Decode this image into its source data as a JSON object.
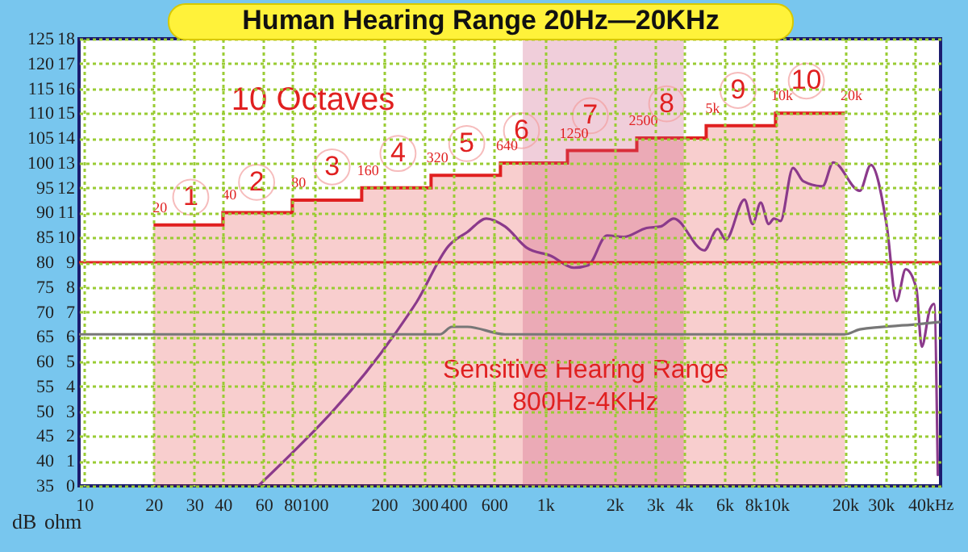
{
  "chart_data": {
    "type": "line",
    "title": "Human Hearing Range 20Hz—20KHz",
    "ylabel": "dB",
    "y2label": "ohm",
    "log": "x",
    "grid": true,
    "xlim": [
      9.5,
      52000
    ],
    "xticks": [
      10,
      20,
      30,
      40,
      60,
      80,
      100,
      200,
      300,
      400,
      600,
      {
        "value": 1000,
        "label": "1k"
      },
      {
        "value": 2000,
        "label": "2k"
      },
      {
        "value": 3000,
        "label": "3k"
      },
      {
        "value": 4000,
        "label": "4k"
      },
      {
        "value": 6000,
        "label": "6k"
      },
      {
        "value": 8000,
        "label": "8k"
      },
      {
        "value": 10000,
        "label": "10k"
      },
      {
        "value": 20000,
        "label": "20k"
      },
      {
        "value": 30000,
        "label": "30k"
      },
      {
        "value": 40000,
        "label": "40k"
      }
    ],
    "xlabel": "Hz",
    "ylim": [
      35,
      125
    ],
    "yticks": [
      35,
      40,
      45,
      50,
      55,
      60,
      65,
      70,
      75,
      80,
      85,
      90,
      95,
      100,
      105,
      110,
      115,
      120,
      125
    ],
    "y2lim": [
      0,
      18
    ],
    "y2ticks": [
      0,
      1,
      2,
      3,
      4,
      5,
      6,
      7,
      8,
      9,
      10,
      11,
      12,
      13,
      14,
      15,
      16,
      17,
      18
    ],
    "series": [
      {
        "type": "area",
        "color": "#e02020",
        "x": [
          20,
          40,
          40,
          80,
          80,
          160,
          160,
          320,
          320,
          640,
          640,
          1250,
          1250,
          2500,
          2500,
          5000,
          5000,
          10000,
          10000,
          20000
        ],
        "values": [
          87.5,
          87.5,
          90,
          90,
          92.5,
          92.5,
          95,
          95,
          97.5,
          97.5,
          100,
          100,
          102.5,
          102.5,
          105,
          105,
          107.5,
          107.5,
          110,
          110
        ]
      },
      {
        "color": "#8b3a8b",
        "x": [
          57,
          224,
          277,
          383,
          460,
          556,
          670,
          834,
          1058,
          1335,
          1539,
          1855,
          2191,
          2757,
          3174,
          3615,
          4900,
          5610,
          6080,
          7330,
          7950,
          8620,
          9340,
          9840,
          10500,
          11900,
          13200,
          16000,
          17800,
          23200,
          25900,
          30400,
          33500,
          36700,
          40800,
          43100,
          46700,
          48700,
          50600
        ],
        "values": [
          35,
          65.7,
          72,
          83.4,
          86.1,
          88.8,
          87.2,
          82.9,
          81.3,
          78.9,
          79.4,
          85.4,
          85.1,
          86.9,
          87.2,
          88.8,
          82.4,
          86.7,
          84.5,
          92.6,
          87.7,
          92,
          87.7,
          88.8,
          88.3,
          99,
          96.3,
          95.3,
          100.1,
          94.4,
          99.6,
          87.2,
          72.2,
          78.6,
          74.8,
          63,
          70.5,
          71.6,
          37.2
        ]
      },
      {
        "axis": "y2",
        "color": "#777777",
        "x": [
          9.5,
          350,
          394,
          460,
          670,
          20000,
          23200,
          40800,
          52000
        ],
        "values": [
          6.1,
          6.1,
          6.4,
          6.4,
          6.1,
          6.1,
          6.3,
          6.5,
          6.6
        ]
      }
    ],
    "ref_lines": [
      {
        "axis": "y",
        "value": 80,
        "color": "#e02020"
      }
    ],
    "bands": [
      {
        "axis": "x",
        "from": 800,
        "to": 4000,
        "label": "Sensitive Hearing Range\n800Hz-4KHz",
        "color": "#c8507a"
      }
    ],
    "annotations": [
      "10 Octaves",
      {
        "text": "1",
        "x": 29,
        "y": 93.1
      },
      {
        "text": "2",
        "x": 56,
        "y": 96.1
      },
      {
        "text": "3",
        "x": 119,
        "y": 99.2
      },
      {
        "text": "4",
        "x": 230,
        "y": 101.9
      },
      {
        "text": "5",
        "x": 457,
        "y": 103.9
      },
      {
        "text": "6",
        "x": 790,
        "y": 106.5
      },
      {
        "text": "7",
        "x": 1570,
        "y": 109.5
      },
      {
        "text": "8",
        "x": 3370,
        "y": 111.9
      },
      {
        "text": "9",
        "x": 6870,
        "y": 114.6
      },
      {
        "text": "10",
        "x": 13600,
        "y": 116.5
      },
      {
        "text": "20",
        "x": 20,
        "y": 87.5
      },
      {
        "text": "40",
        "x": 40,
        "y": 90
      },
      {
        "text": "80",
        "x": 80,
        "y": 92.5
      },
      {
        "text": "160",
        "x": 160,
        "y": 95
      },
      {
        "text": "320",
        "x": 320,
        "y": 97.5
      },
      {
        "text": "640",
        "x": 640,
        "y": 100
      },
      {
        "text": "1250",
        "x": 1250,
        "y": 102.5
      },
      {
        "text": "2500",
        "x": 2500,
        "y": 105
      },
      {
        "text": "5k",
        "x": 5000,
        "y": 107.5
      },
      {
        "text": "10k",
        "x": 10000,
        "y": 110
      },
      {
        "text": "20k",
        "x": 20000,
        "y": 110
      }
    ]
  }
}
